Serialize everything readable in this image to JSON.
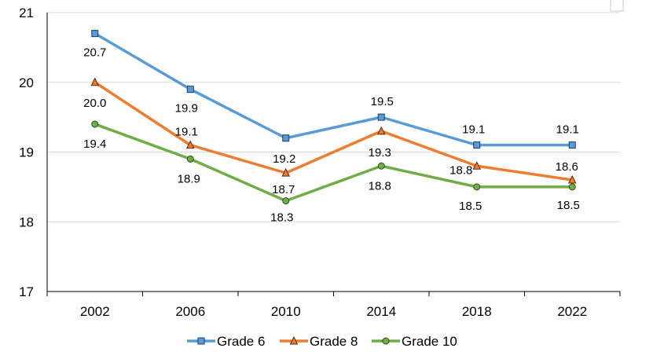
{
  "chart_data": {
    "type": "line",
    "title": "",
    "xlabel": "",
    "ylabel": "",
    "categories": [
      "2002",
      "2006",
      "2010",
      "2014",
      "2018",
      "2022"
    ],
    "ylim": [
      17,
      21
    ],
    "yticks": [
      "17",
      "18",
      "19",
      "20",
      "21"
    ],
    "grid": true,
    "legend": "bottom",
    "series": [
      {
        "name": "Grade 6",
        "marker": "square",
        "color": "#5b9bd5",
        "fill": "#5b9bd5",
        "values": [
          20.7,
          19.9,
          19.2,
          19.5,
          19.1,
          19.1
        ],
        "labels": [
          "20.7",
          "19.9",
          "19.2",
          "19.5",
          "19.1",
          "19.1"
        ]
      },
      {
        "name": "Grade 8",
        "marker": "triangle",
        "color": "#ed7d31",
        "fill": "#ed7d31",
        "values": [
          20.0,
          19.1,
          18.7,
          19.3,
          18.8,
          18.6
        ],
        "labels": [
          "20.0",
          "19.1",
          "18.7",
          "19.3",
          "18.8",
          "18.6"
        ]
      },
      {
        "name": "Grade 10",
        "marker": "circle",
        "color": "#70ad47",
        "fill": "#70ad47",
        "values": [
          19.4,
          18.9,
          18.3,
          18.8,
          18.5,
          18.5
        ],
        "labels": [
          "19.4",
          "18.9",
          "18.3",
          "18.8",
          "18.5",
          "18.5"
        ]
      }
    ]
  }
}
